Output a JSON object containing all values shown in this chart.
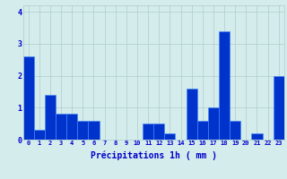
{
  "hours": [
    0,
    1,
    2,
    3,
    4,
    5,
    6,
    7,
    8,
    9,
    10,
    11,
    12,
    13,
    14,
    15,
    16,
    17,
    18,
    19,
    20,
    21,
    22,
    23
  ],
  "values": [
    2.6,
    0.3,
    1.4,
    0.8,
    0.8,
    0.6,
    0.6,
    0.0,
    0.0,
    0.0,
    0.0,
    0.5,
    0.5,
    0.2,
    0.0,
    1.6,
    0.6,
    1.0,
    3.4,
    0.6,
    0.0,
    0.2,
    0.0,
    2.0
  ],
  "bar_color": "#0033cc",
  "bar_edge_color": "#4488ff",
  "background_color": "#d4ecec",
  "grid_color": "#b0cccc",
  "text_color": "#0000cc",
  "xlabel": "Précipitations 1h ( mm )",
  "ylim": [
    0,
    4.2
  ],
  "yticks": [
    0,
    1,
    2,
    3,
    4
  ]
}
